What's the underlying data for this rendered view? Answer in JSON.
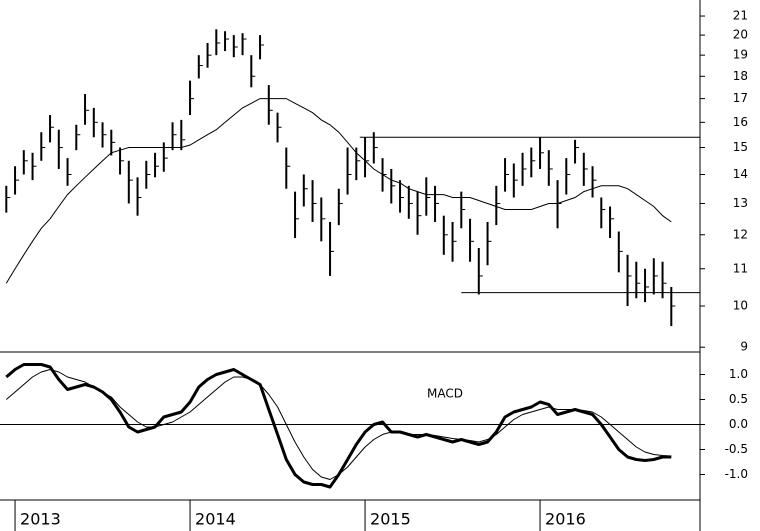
{
  "chart_data": [
    {
      "type": "ohlc",
      "log": true,
      "color": "#000000",
      "ma_color": "#000000",
      "xlim": [
        2012.914,
        2016.914
      ],
      "ylim": [
        8.89,
        21.88
      ],
      "yticks": [
        9,
        10,
        11,
        12,
        13,
        14,
        15,
        16,
        17,
        18,
        19,
        20,
        21
      ],
      "x": [
        2012.95,
        2013.0,
        2013.05,
        2013.1,
        2013.15,
        2013.2,
        2013.25,
        2013.3,
        2013.35,
        2013.4,
        2013.45,
        2013.5,
        2013.55,
        2013.6,
        2013.65,
        2013.7,
        2013.75,
        2013.8,
        2013.85,
        2013.9,
        2013.95,
        2014.0,
        2014.05,
        2014.1,
        2014.15,
        2014.2,
        2014.25,
        2014.3,
        2014.35,
        2014.4,
        2014.45,
        2014.5,
        2014.55,
        2014.6,
        2014.65,
        2014.7,
        2014.75,
        2014.8,
        2014.85,
        2014.9,
        2014.95,
        2015.0,
        2015.05,
        2015.1,
        2015.15,
        2015.2,
        2015.25,
        2015.3,
        2015.35,
        2015.4,
        2015.45,
        2015.5,
        2015.55,
        2015.6,
        2015.65,
        2015.7,
        2015.75,
        2015.8,
        2015.85,
        2015.9,
        2015.95,
        2016.0,
        2016.05,
        2016.1,
        2016.15,
        2016.2,
        2016.25,
        2016.3,
        2016.35,
        2016.4,
        2016.45,
        2016.5,
        2016.55,
        2016.6,
        2016.65,
        2016.7,
        2016.75
      ],
      "high": [
        13.6,
        14.3,
        14.9,
        14.8,
        15.6,
        16.3,
        15.7,
        14.6,
        15.9,
        17.2,
        16.6,
        16.0,
        15.7,
        15.0,
        14.5,
        13.9,
        14.5,
        14.8,
        15.2,
        16.0,
        16.1,
        17.8,
        19.0,
        19.6,
        20.3,
        20.2,
        20.0,
        20.1,
        19.0,
        20.0,
        17.6,
        16.4,
        15.0,
        13.4,
        14.0,
        13.8,
        13.2,
        12.4,
        13.5,
        15.0,
        15.0,
        15.4,
        15.6,
        14.6,
        14.2,
        13.8,
        13.6,
        13.4,
        13.9,
        13.6,
        12.6,
        12.4,
        13.4,
        12.5,
        11.6,
        12.4,
        13.6,
        14.6,
        14.4,
        14.8,
        15.0,
        15.4,
        14.9,
        13.8,
        14.6,
        15.3,
        14.8,
        14.3,
        13.2,
        12.9,
        12.1,
        11.4,
        11.2,
        11.0,
        11.3,
        11.2,
        10.5
      ],
      "low": [
        12.7,
        13.3,
        14.0,
        13.8,
        14.5,
        15.2,
        14.2,
        13.6,
        14.9,
        15.9,
        15.4,
        15.0,
        14.7,
        14.0,
        13.0,
        12.6,
        13.5,
        13.9,
        14.1,
        14.9,
        14.9,
        16.3,
        17.9,
        18.4,
        19.0,
        19.2,
        18.9,
        19.0,
        17.5,
        18.8,
        15.9,
        15.2,
        13.5,
        11.9,
        12.9,
        12.4,
        11.8,
        10.8,
        12.3,
        13.3,
        13.8,
        13.9,
        14.4,
        13.4,
        13.0,
        12.7,
        12.5,
        12.0,
        12.6,
        12.4,
        11.4,
        11.2,
        12.2,
        11.2,
        10.3,
        11.1,
        12.3,
        13.4,
        13.2,
        13.6,
        13.9,
        14.2,
        13.6,
        12.2,
        13.3,
        14.4,
        13.6,
        13.2,
        12.2,
        11.9,
        10.9,
        10.0,
        10.2,
        10.1,
        10.3,
        10.2,
        9.5
      ],
      "close": [
        13.2,
        13.8,
        14.5,
        14.3,
        15.0,
        15.8,
        15.0,
        14.0,
        15.5,
        16.5,
        16.0,
        15.5,
        15.2,
        14.5,
        13.8,
        13.2,
        14.0,
        14.3,
        14.6,
        15.5,
        15.3,
        17.0,
        18.5,
        19.0,
        19.6,
        19.8,
        19.4,
        19.8,
        18.0,
        19.5,
        16.5,
        15.8,
        14.3,
        12.5,
        13.5,
        13.0,
        12.5,
        11.5,
        13.0,
        14.0,
        14.5,
        14.5,
        15.0,
        14.0,
        13.6,
        13.2,
        13.0,
        12.6,
        13.2,
        13.0,
        12.0,
        11.8,
        12.8,
        11.8,
        10.8,
        11.8,
        13.0,
        14.0,
        13.8,
        14.2,
        14.5,
        14.8,
        14.2,
        13.0,
        14.0,
        15.0,
        14.2,
        13.8,
        12.8,
        12.5,
        11.5,
        10.8,
        10.6,
        10.5,
        10.8,
        10.6,
        10.0
      ],
      "ma": [
        10.6,
        11.0,
        11.4,
        11.8,
        12.2,
        12.5,
        12.9,
        13.3,
        13.6,
        13.9,
        14.2,
        14.5,
        14.8,
        14.9,
        15.0,
        15.0,
        15.0,
        15.0,
        15.0,
        15.0,
        15.0,
        15.1,
        15.3,
        15.5,
        15.7,
        16.0,
        16.3,
        16.6,
        16.8,
        17.0,
        17.0,
        17.0,
        17.0,
        16.8,
        16.6,
        16.4,
        16.1,
        15.9,
        15.6,
        15.2,
        14.8,
        14.5,
        14.2,
        14.0,
        13.8,
        13.7,
        13.5,
        13.4,
        13.3,
        13.3,
        13.3,
        13.2,
        13.2,
        13.2,
        13.1,
        13.0,
        12.9,
        12.8,
        12.8,
        12.8,
        12.8,
        12.9,
        13.0,
        13.0,
        13.1,
        13.2,
        13.4,
        13.5,
        13.6,
        13.6,
        13.6,
        13.5,
        13.3,
        13.1,
        12.9,
        12.6,
        12.4
      ],
      "levels": [
        {
          "value": 15.4,
          "x": [
            2014.97,
            2016.914
          ]
        },
        {
          "value": 10.35,
          "x": [
            2015.55,
            2016.914
          ]
        }
      ]
    },
    {
      "type": "line",
      "label": "MACD",
      "xlim": [
        2012.914,
        2016.914
      ],
      "ylim": [
        -1.45,
        1.45
      ],
      "xticks": [
        2013,
        2014,
        2015,
        2016
      ],
      "yticks": [
        {
          "value": 1.0,
          "label": "1.0"
        },
        {
          "value": 0.5,
          "label": "0.5"
        },
        {
          "value": 0.0,
          "label": "0.0"
        },
        {
          "value": -0.5,
          "label": "-0.5"
        },
        {
          "value": -1.0,
          "label": "-1.0"
        }
      ],
      "x": [
        2012.95,
        2013.0,
        2013.05,
        2013.1,
        2013.15,
        2013.2,
        2013.25,
        2013.3,
        2013.35,
        2013.4,
        2013.45,
        2013.5,
        2013.55,
        2013.6,
        2013.65,
        2013.7,
        2013.75,
        2013.8,
        2013.85,
        2013.9,
        2013.95,
        2014.0,
        2014.05,
        2014.1,
        2014.15,
        2014.2,
        2014.25,
        2014.3,
        2014.35,
        2014.4,
        2014.45,
        2014.5,
        2014.55,
        2014.6,
        2014.65,
        2014.7,
        2014.75,
        2014.8,
        2014.85,
        2014.9,
        2014.95,
        2015.0,
        2015.05,
        2015.1,
        2015.15,
        2015.2,
        2015.25,
        2015.3,
        2015.35,
        2015.4,
        2015.45,
        2015.5,
        2015.55,
        2015.6,
        2015.65,
        2015.7,
        2015.75,
        2015.8,
        2015.85,
        2015.9,
        2015.95,
        2016.0,
        2016.05,
        2016.1,
        2016.15,
        2016.2,
        2016.25,
        2016.3,
        2016.35,
        2016.4,
        2016.45,
        2016.5,
        2016.55,
        2016.6,
        2016.65,
        2016.7,
        2016.75
      ],
      "series": [
        {
          "color": "#000000",
          "width": 3,
          "values": [
            0.95,
            1.1,
            1.2,
            1.2,
            1.2,
            1.15,
            0.9,
            0.7,
            0.75,
            0.8,
            0.75,
            0.65,
            0.5,
            0.25,
            -0.05,
            -0.15,
            -0.1,
            -0.05,
            0.15,
            0.2,
            0.25,
            0.45,
            0.75,
            0.9,
            1.0,
            1.05,
            1.1,
            1.0,
            0.9,
            0.8,
            0.3,
            -0.2,
            -0.7,
            -1.0,
            -1.15,
            -1.2,
            -1.2,
            -1.25,
            -1.0,
            -0.7,
            -0.4,
            -0.15,
            0.0,
            0.05,
            -0.15,
            -0.15,
            -0.2,
            -0.25,
            -0.2,
            -0.25,
            -0.3,
            -0.35,
            -0.3,
            -0.35,
            -0.4,
            -0.35,
            -0.15,
            0.15,
            0.25,
            0.3,
            0.35,
            0.45,
            0.4,
            0.2,
            0.25,
            0.3,
            0.25,
            0.2,
            0.0,
            -0.25,
            -0.5,
            -0.65,
            -0.7,
            -0.72,
            -0.7,
            -0.65,
            -0.65
          ]
        },
        {
          "color": "#000000",
          "width": 1,
          "values": [
            0.5,
            0.65,
            0.8,
            0.95,
            1.05,
            1.1,
            1.05,
            0.95,
            0.9,
            0.85,
            0.75,
            0.65,
            0.55,
            0.35,
            0.2,
            0.05,
            -0.05,
            -0.05,
            0.0,
            0.05,
            0.15,
            0.25,
            0.4,
            0.55,
            0.7,
            0.85,
            0.95,
            0.95,
            0.9,
            0.8,
            0.6,
            0.35,
            0.0,
            -0.35,
            -0.65,
            -0.9,
            -1.05,
            -1.1,
            -1.0,
            -0.85,
            -0.65,
            -0.45,
            -0.3,
            -0.2,
            -0.15,
            -0.15,
            -0.2,
            -0.2,
            -0.2,
            -0.22,
            -0.25,
            -0.28,
            -0.3,
            -0.32,
            -0.35,
            -0.3,
            -0.2,
            -0.05,
            0.1,
            0.2,
            0.25,
            0.3,
            0.35,
            0.3,
            0.3,
            0.3,
            0.28,
            0.25,
            0.15,
            0.0,
            -0.15,
            -0.3,
            -0.45,
            -0.55,
            -0.6,
            -0.62,
            -0.63
          ]
        }
      ]
    }
  ]
}
